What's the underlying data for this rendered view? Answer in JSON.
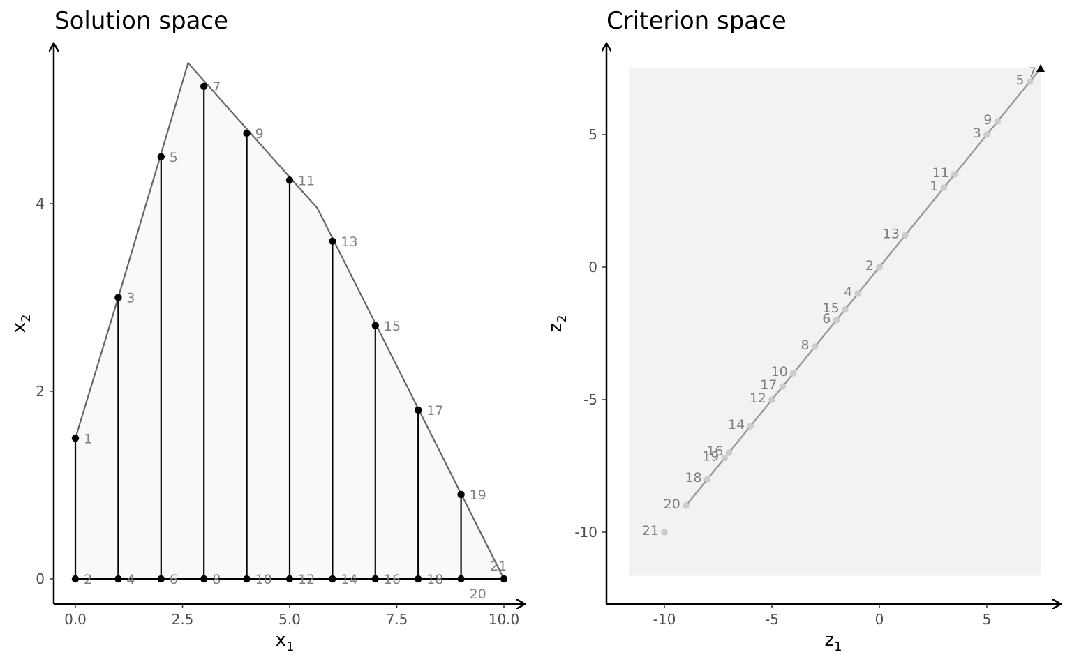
{
  "charts": [
    {
      "title": "Solution space",
      "xlabel": "x",
      "xlabel_sub": "1",
      "ylabel": "x",
      "ylabel_sub": "2",
      "xticks": [
        "0.0",
        "2.5",
        "5.0",
        "7.5",
        "10.0"
      ],
      "yticks": [
        "0",
        "2",
        "4"
      ]
    },
    {
      "title": "Criterion space",
      "xlabel": "z",
      "xlabel_sub": "1",
      "ylabel": "z",
      "ylabel_sub": "2",
      "xticks": [
        "-10",
        "-5",
        "0",
        "5"
      ],
      "yticks": [
        "-10",
        "-5",
        "0",
        "5"
      ]
    }
  ],
  "chart_data": [
    {
      "type": "scatter",
      "title": "Solution space",
      "xlabel": "x1",
      "ylabel": "x2",
      "xlim": [
        -0.5,
        10.5
      ],
      "ylim": [
        -0.27,
        5.5
      ],
      "x_ticks": [
        0,
        2.5,
        5,
        7.5,
        10
      ],
      "y_ticks": [
        0,
        2,
        4
      ],
      "grid": false,
      "feasible_region": [
        [
          0,
          1.5
        ],
        [
          1,
          3
        ],
        [
          2.63,
          5.5
        ],
        [
          5.65,
          3.95
        ],
        [
          10,
          0
        ],
        [
          0,
          0
        ]
      ],
      "points": [
        {
          "id": "1",
          "x": 0,
          "y": 1.5
        },
        {
          "id": "2",
          "x": 0,
          "y": 0
        },
        {
          "id": "3",
          "x": 1,
          "y": 3
        },
        {
          "id": "4",
          "x": 1,
          "y": 0
        },
        {
          "id": "5",
          "x": 2,
          "y": 4.5
        },
        {
          "id": "6",
          "x": 2,
          "y": 0
        },
        {
          "id": "7",
          "x": 3,
          "y": 5.25
        },
        {
          "id": "8",
          "x": 3,
          "y": 0
        },
        {
          "id": "9",
          "x": 4,
          "y": 4.75
        },
        {
          "id": "10",
          "x": 4,
          "y": 0
        },
        {
          "id": "11",
          "x": 5,
          "y": 4.25
        },
        {
          "id": "12",
          "x": 5,
          "y": 0
        },
        {
          "id": "13",
          "x": 6,
          "y": 3.6
        },
        {
          "id": "14",
          "x": 6,
          "y": 0
        },
        {
          "id": "15",
          "x": 7,
          "y": 2.7
        },
        {
          "id": "16",
          "x": 7,
          "y": 0
        },
        {
          "id": "17",
          "x": 8,
          "y": 1.8
        },
        {
          "id": "18",
          "x": 8,
          "y": 0
        },
        {
          "id": "19",
          "x": 9,
          "y": 0.9
        },
        {
          "id": "20",
          "x": 9,
          "y": 0
        },
        {
          "id": "21",
          "x": 10,
          "y": 0
        }
      ],
      "segments": [
        [
          [
            0,
            0
          ],
          [
            0,
            1.5
          ]
        ],
        [
          [
            1,
            0
          ],
          [
            1,
            3
          ]
        ],
        [
          [
            2,
            0
          ],
          [
            2,
            4.5
          ]
        ],
        [
          [
            3,
            0
          ],
          [
            3,
            5.25
          ]
        ],
        [
          [
            4,
            0
          ],
          [
            4,
            4.75
          ]
        ],
        [
          [
            5,
            0
          ],
          [
            5,
            4.25
          ]
        ],
        [
          [
            6,
            0
          ],
          [
            6,
            3.6
          ]
        ],
        [
          [
            7,
            0
          ],
          [
            7,
            2.7
          ]
        ],
        [
          [
            8,
            0
          ],
          [
            8,
            1.8
          ]
        ],
        [
          [
            9,
            0
          ],
          [
            9,
            0.9
          ]
        ],
        [
          [
            0,
            0
          ],
          [
            10,
            0
          ]
        ]
      ]
    },
    {
      "type": "scatter",
      "title": "Criterion space",
      "xlabel": "z1",
      "ylabel": "z2",
      "xlim": [
        -12.6,
        8.4
      ],
      "ylim": [
        -12.6,
        8.4
      ],
      "x_ticks": [
        -10,
        -5,
        0,
        5
      ],
      "y_ticks": [
        -10,
        -5,
        0,
        5
      ],
      "grid": false,
      "shaded_region": {
        "x": [
          -11.65,
          7.5
        ],
        "y": [
          -11.65,
          7.5
        ]
      },
      "line": [
        [
          -9,
          -9
        ],
        [
          7.5,
          7.5
        ]
      ],
      "points": [
        {
          "id": "21",
          "x": -10,
          "y": -10
        },
        {
          "id": "20",
          "x": -9,
          "y": -9
        },
        {
          "id": "18",
          "x": -8,
          "y": -8
        },
        {
          "id": "19",
          "x": -7.2,
          "y": -7.2
        },
        {
          "id": "16",
          "x": -7,
          "y": -7
        },
        {
          "id": "14",
          "x": -6,
          "y": -6
        },
        {
          "id": "12",
          "x": -5,
          "y": -5
        },
        {
          "id": "17",
          "x": -4.5,
          "y": -4.5
        },
        {
          "id": "10",
          "x": -4,
          "y": -4
        },
        {
          "id": "8",
          "x": -3,
          "y": -3
        },
        {
          "id": "6",
          "x": -2,
          "y": -2
        },
        {
          "id": "15",
          "x": -1.6,
          "y": -1.6
        },
        {
          "id": "4",
          "x": -1,
          "y": -1
        },
        {
          "id": "2",
          "x": 0,
          "y": 0
        },
        {
          "id": "13",
          "x": 1.2,
          "y": 1.2
        },
        {
          "id": "1",
          "x": 3,
          "y": 3
        },
        {
          "id": "11",
          "x": 3.5,
          "y": 3.5
        },
        {
          "id": "3",
          "x": 5,
          "y": 5
        },
        {
          "id": "9",
          "x": 5.5,
          "y": 5.5
        },
        {
          "id": "5",
          "x": 7,
          "y": 7
        },
        {
          "id": "7",
          "x": 7.5,
          "y": 7.5,
          "marker": "triangle"
        }
      ],
      "colors": {
        "points": "#cccccc",
        "line": "#999999",
        "region": "#f2f2f2",
        "ideal": "#000000"
      }
    }
  ]
}
